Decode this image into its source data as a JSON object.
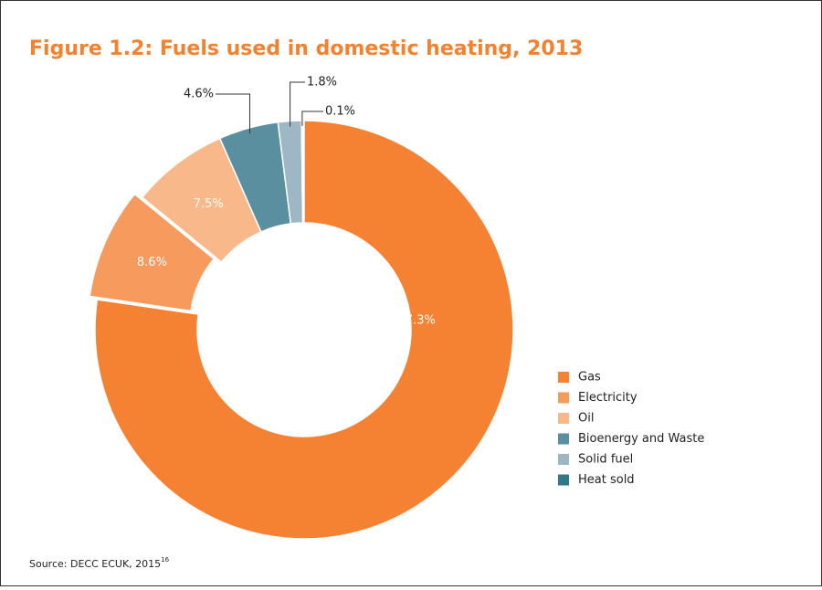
{
  "chart_data": {
    "type": "donut",
    "title": "Figure 1.2: Fuels used in domestic heating, 2013",
    "categories": [
      "Gas",
      "Electricity",
      "Oil",
      "Bioenergy and Waste",
      "Solid fuel",
      "Heat sold"
    ],
    "values": [
      77.3,
      8.6,
      7.5,
      4.6,
      1.8,
      0.1
    ],
    "value_labels": [
      "77.3%",
      "8.6%",
      "7.5%",
      "4.6%",
      "1.8%",
      "0.1%"
    ],
    "colors": [
      "#f58233",
      "#f79a5e",
      "#f9b88a",
      "#5a8fa0",
      "#9db8c4",
      "#2e7a8a"
    ],
    "legend": "right",
    "source": "Source: DECC ECUK, 2015",
    "source_ref": "16"
  }
}
